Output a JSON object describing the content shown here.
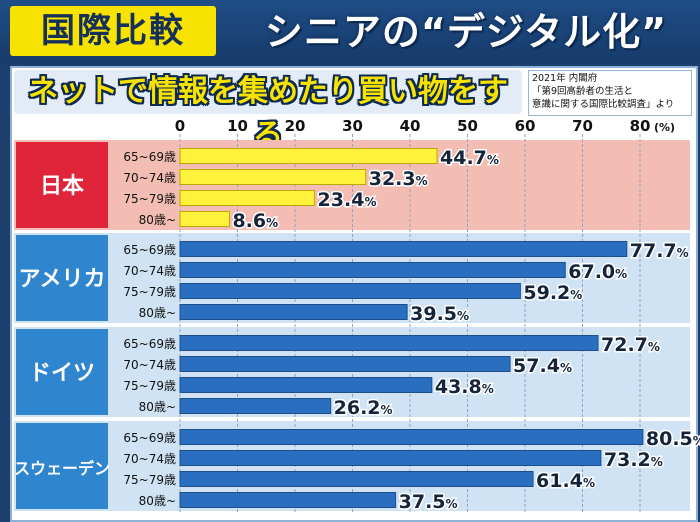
{
  "header": {
    "tag": "国際比較",
    "title": "シニアの“デジタル化”"
  },
  "subtitle": "ネットで情報を集めたり買い物をする",
  "source": {
    "line1": "2021年 内閣府",
    "line2": "「第9回高齢者の生活と",
    "line3": "意識に関する国際比較調査」より"
  },
  "colors": {
    "japan_panel": "#f4bdb3",
    "japan_label": "#e0243a",
    "japan_bar": "#fff23c",
    "other_panel": "#cfe3f4",
    "other_label": "#2f86cf",
    "other_bar": "#2a6fbf"
  },
  "chart_data": {
    "type": "bar",
    "orientation": "horizontal",
    "xlim": [
      0,
      80
    ],
    "x_ticks": [
      "0",
      "10",
      "20",
      "30",
      "40",
      "50",
      "60",
      "70",
      "80"
    ],
    "unit_label": "(%)",
    "value_suffix": "%",
    "categories": [
      "65~69歳",
      "70~74歳",
      "75~79歳",
      "80歳~"
    ],
    "series": [
      {
        "name": "日本",
        "values": [
          44.7,
          32.3,
          23.4,
          8.6
        ]
      },
      {
        "name": "アメリカ",
        "values": [
          77.7,
          67.0,
          59.2,
          39.5
        ]
      },
      {
        "name": "ドイツ",
        "values": [
          72.7,
          57.4,
          43.8,
          26.2
        ]
      },
      {
        "name": "スウェーデン",
        "values": [
          80.5,
          73.2,
          61.4,
          37.5
        ]
      }
    ],
    "grid": true
  }
}
